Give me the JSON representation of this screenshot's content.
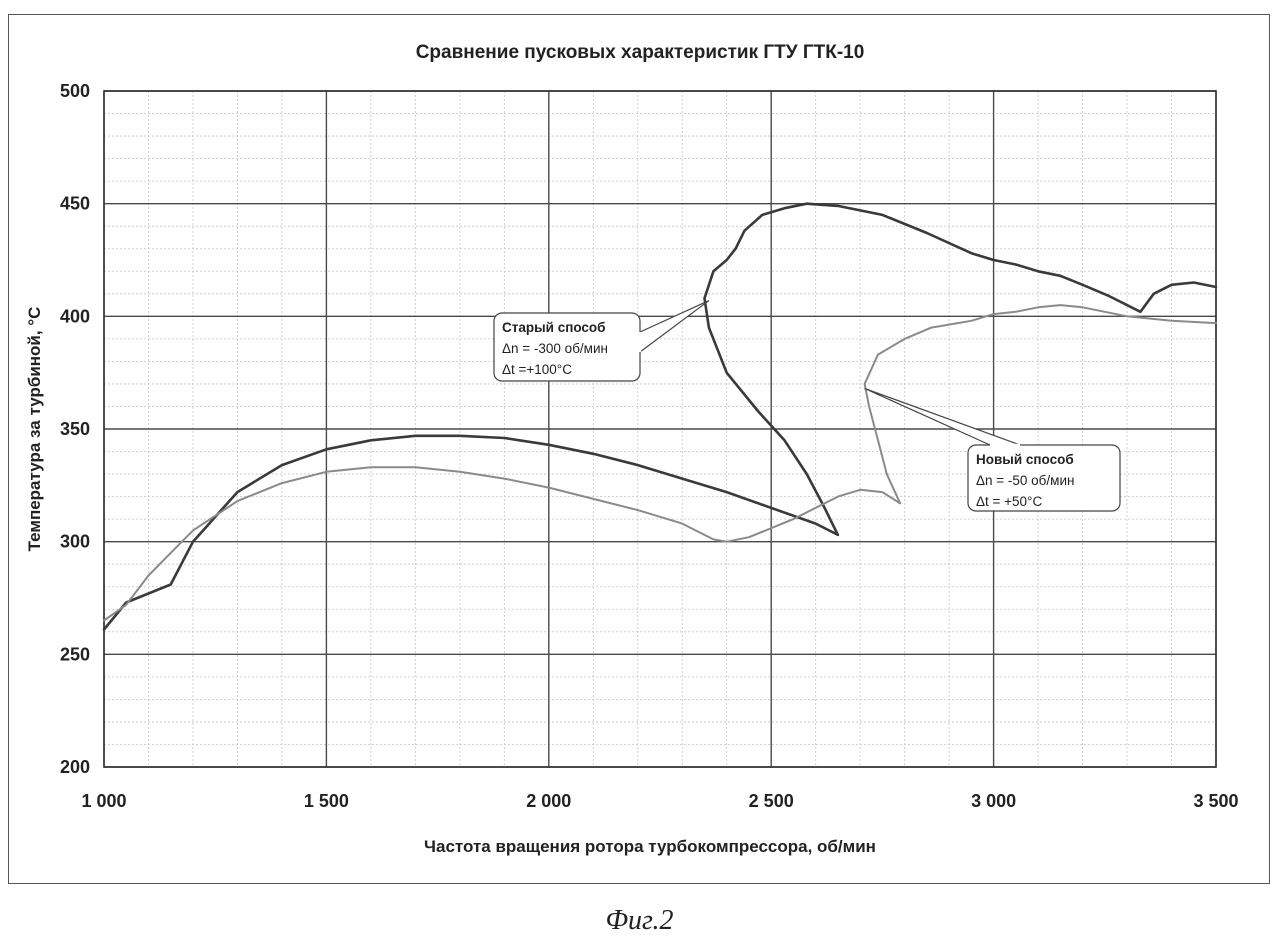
{
  "figure_caption": "Фиг.2",
  "chart_data": {
    "type": "line",
    "title": "Сравнение пусковых характеристик ГТУ ГТК-10",
    "xlabel": "Частота вращения ротора турбокомпрессора, об/мин",
    "ylabel": "Температура за турбиной, °С",
    "xlim": [
      1000,
      3500
    ],
    "ylim": [
      200,
      500
    ],
    "x_ticks": [
      1000,
      1500,
      2000,
      2500,
      3000,
      3500
    ],
    "x_tick_labels": [
      "1 000",
      "1 500",
      "2 000",
      "2 500",
      "3 000",
      "3 500"
    ],
    "y_ticks": [
      200,
      250,
      300,
      350,
      400,
      450,
      500
    ],
    "y_tick_labels": [
      "200",
      "250",
      "300",
      "350",
      "400",
      "450",
      "500"
    ],
    "grid": true,
    "minor_grid": true,
    "series": [
      {
        "name": "Старый способ",
        "color": "#3a3a3a",
        "points": [
          [
            1000,
            261
          ],
          [
            1050,
            273
          ],
          [
            1100,
            277
          ],
          [
            1150,
            281
          ],
          [
            1200,
            300
          ],
          [
            1300,
            322
          ],
          [
            1400,
            334
          ],
          [
            1500,
            341
          ],
          [
            1600,
            345
          ],
          [
            1700,
            347
          ],
          [
            1800,
            347
          ],
          [
            1900,
            346
          ],
          [
            2000,
            343
          ],
          [
            2100,
            339
          ],
          [
            2200,
            334
          ],
          [
            2300,
            328
          ],
          [
            2400,
            322
          ],
          [
            2500,
            315
          ],
          [
            2600,
            308
          ],
          [
            2650,
            303
          ],
          [
            2620,
            315
          ],
          [
            2580,
            330
          ],
          [
            2530,
            345
          ],
          [
            2470,
            358
          ],
          [
            2400,
            375
          ],
          [
            2360,
            395
          ],
          [
            2350,
            408
          ],
          [
            2370,
            420
          ],
          [
            2400,
            425
          ],
          [
            2420,
            430
          ],
          [
            2440,
            438
          ],
          [
            2480,
            445
          ],
          [
            2530,
            448
          ],
          [
            2580,
            450
          ],
          [
            2650,
            449
          ],
          [
            2750,
            445
          ],
          [
            2850,
            437
          ],
          [
            2950,
            428
          ],
          [
            3000,
            425
          ],
          [
            3050,
            423
          ],
          [
            3100,
            420
          ],
          [
            3150,
            418
          ],
          [
            3200,
            414
          ],
          [
            3260,
            409
          ],
          [
            3330,
            402
          ],
          [
            3360,
            410
          ],
          [
            3400,
            414
          ],
          [
            3450,
            415
          ],
          [
            3500,
            413
          ]
        ]
      },
      {
        "name": "Новый способ",
        "color": "#8a8a8a",
        "points": [
          [
            1000,
            265
          ],
          [
            1050,
            272
          ],
          [
            1100,
            285
          ],
          [
            1150,
            295
          ],
          [
            1200,
            305
          ],
          [
            1300,
            318
          ],
          [
            1400,
            326
          ],
          [
            1500,
            331
          ],
          [
            1600,
            333
          ],
          [
            1700,
            333
          ],
          [
            1800,
            331
          ],
          [
            1900,
            328
          ],
          [
            2000,
            324
          ],
          [
            2100,
            319
          ],
          [
            2200,
            314
          ],
          [
            2300,
            308
          ],
          [
            2370,
            301
          ],
          [
            2400,
            300
          ],
          [
            2450,
            302
          ],
          [
            2550,
            310
          ],
          [
            2650,
            320
          ],
          [
            2700,
            323
          ],
          [
            2750,
            322
          ],
          [
            2790,
            317
          ],
          [
            2760,
            330
          ],
          [
            2740,
            345
          ],
          [
            2720,
            360
          ],
          [
            2710,
            370
          ],
          [
            2740,
            383
          ],
          [
            2800,
            390
          ],
          [
            2860,
            395
          ],
          [
            2950,
            398
          ],
          [
            3000,
            401
          ],
          [
            3050,
            402
          ],
          [
            3100,
            404
          ],
          [
            3150,
            405
          ],
          [
            3200,
            404
          ],
          [
            3300,
            400
          ],
          [
            3400,
            398
          ],
          [
            3500,
            397
          ]
        ]
      }
    ],
    "annotations": [
      {
        "lines": [
          "Старый способ",
          "Δn = -300 об/мин",
          "Δt  =+100°С"
        ],
        "anchor": [
          2360,
          407
        ],
        "box_position": "left-center"
      },
      {
        "lines": [
          "Новый способ",
          "Δn = -50 об/мин",
          "Δt = +50°С"
        ],
        "anchor": [
          2710,
          368
        ],
        "box_position": "right-lower"
      }
    ]
  }
}
